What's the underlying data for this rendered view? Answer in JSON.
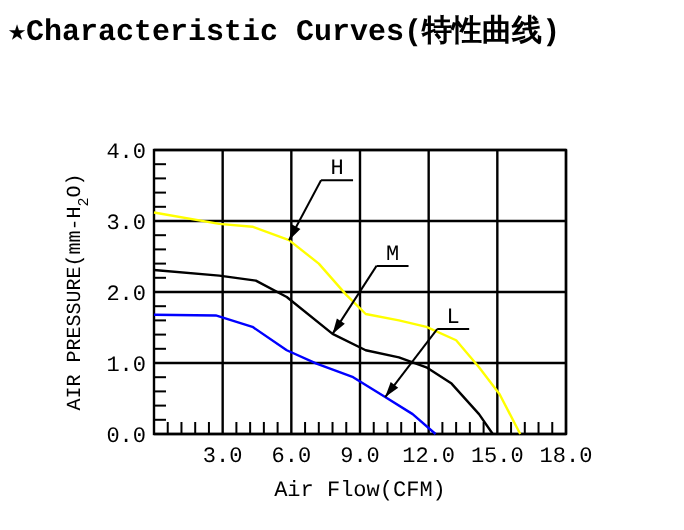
{
  "chart_data": {
    "type": "line",
    "title": "★Characteristic Curves(特性曲线)",
    "xlabel": "Air Flow(CFM)",
    "ylabel": "AIR PRESSURE(mm-H$_{2}$O)",
    "xlim": [
      0,
      18
    ],
    "ylim": [
      0,
      4
    ],
    "xticks": [
      {
        "value": 3,
        "label": "3.0"
      },
      {
        "value": 6,
        "label": "6.0"
      },
      {
        "value": 9,
        "label": "9.0"
      },
      {
        "value": 12,
        "label": "12.0"
      },
      {
        "value": 15,
        "label": "15.0"
      },
      {
        "value": 18,
        "label": "18.0"
      }
    ],
    "yticks": [
      {
        "value": 0,
        "label": "0.0"
      },
      {
        "value": 1,
        "label": "1.0"
      },
      {
        "value": 2,
        "label": "2.0"
      },
      {
        "value": 3,
        "label": "3.0"
      },
      {
        "value": 4,
        "label": "4.0"
      }
    ],
    "grid": true,
    "marker": "none",
    "line_style": "solid",
    "series": [
      {
        "name": "H",
        "color": "#ffff00",
        "x": [
          0,
          2.85,
          4.3,
          5.9,
          7.2,
          8.4,
          9.25,
          10.7,
          11.9,
          13.2,
          14.2,
          15.1,
          16.0
        ],
        "values": [
          3.12,
          2.96,
          2.92,
          2.73,
          2.4,
          1.96,
          1.69,
          1.6,
          1.51,
          1.32,
          0.94,
          0.56,
          0
        ]
      },
      {
        "name": "M",
        "color": "#000000",
        "x": [
          0,
          2.85,
          4.45,
          5.8,
          7.8,
          9.25,
          10.7,
          11.9,
          13.0,
          14.2,
          14.8
        ],
        "values": [
          2.31,
          2.23,
          2.16,
          1.93,
          1.41,
          1.18,
          1.08,
          0.94,
          0.71,
          0.28,
          0
        ]
      },
      {
        "name": "L",
        "color": "#0000ff",
        "x": [
          0,
          2.7,
          4.3,
          5.8,
          7.1,
          8.7,
          10.1,
          11.3,
          12.3
        ],
        "values": [
          1.68,
          1.67,
          1.51,
          1.18,
          0.99,
          0.8,
          0.52,
          0.28,
          0
        ]
      }
    ]
  }
}
